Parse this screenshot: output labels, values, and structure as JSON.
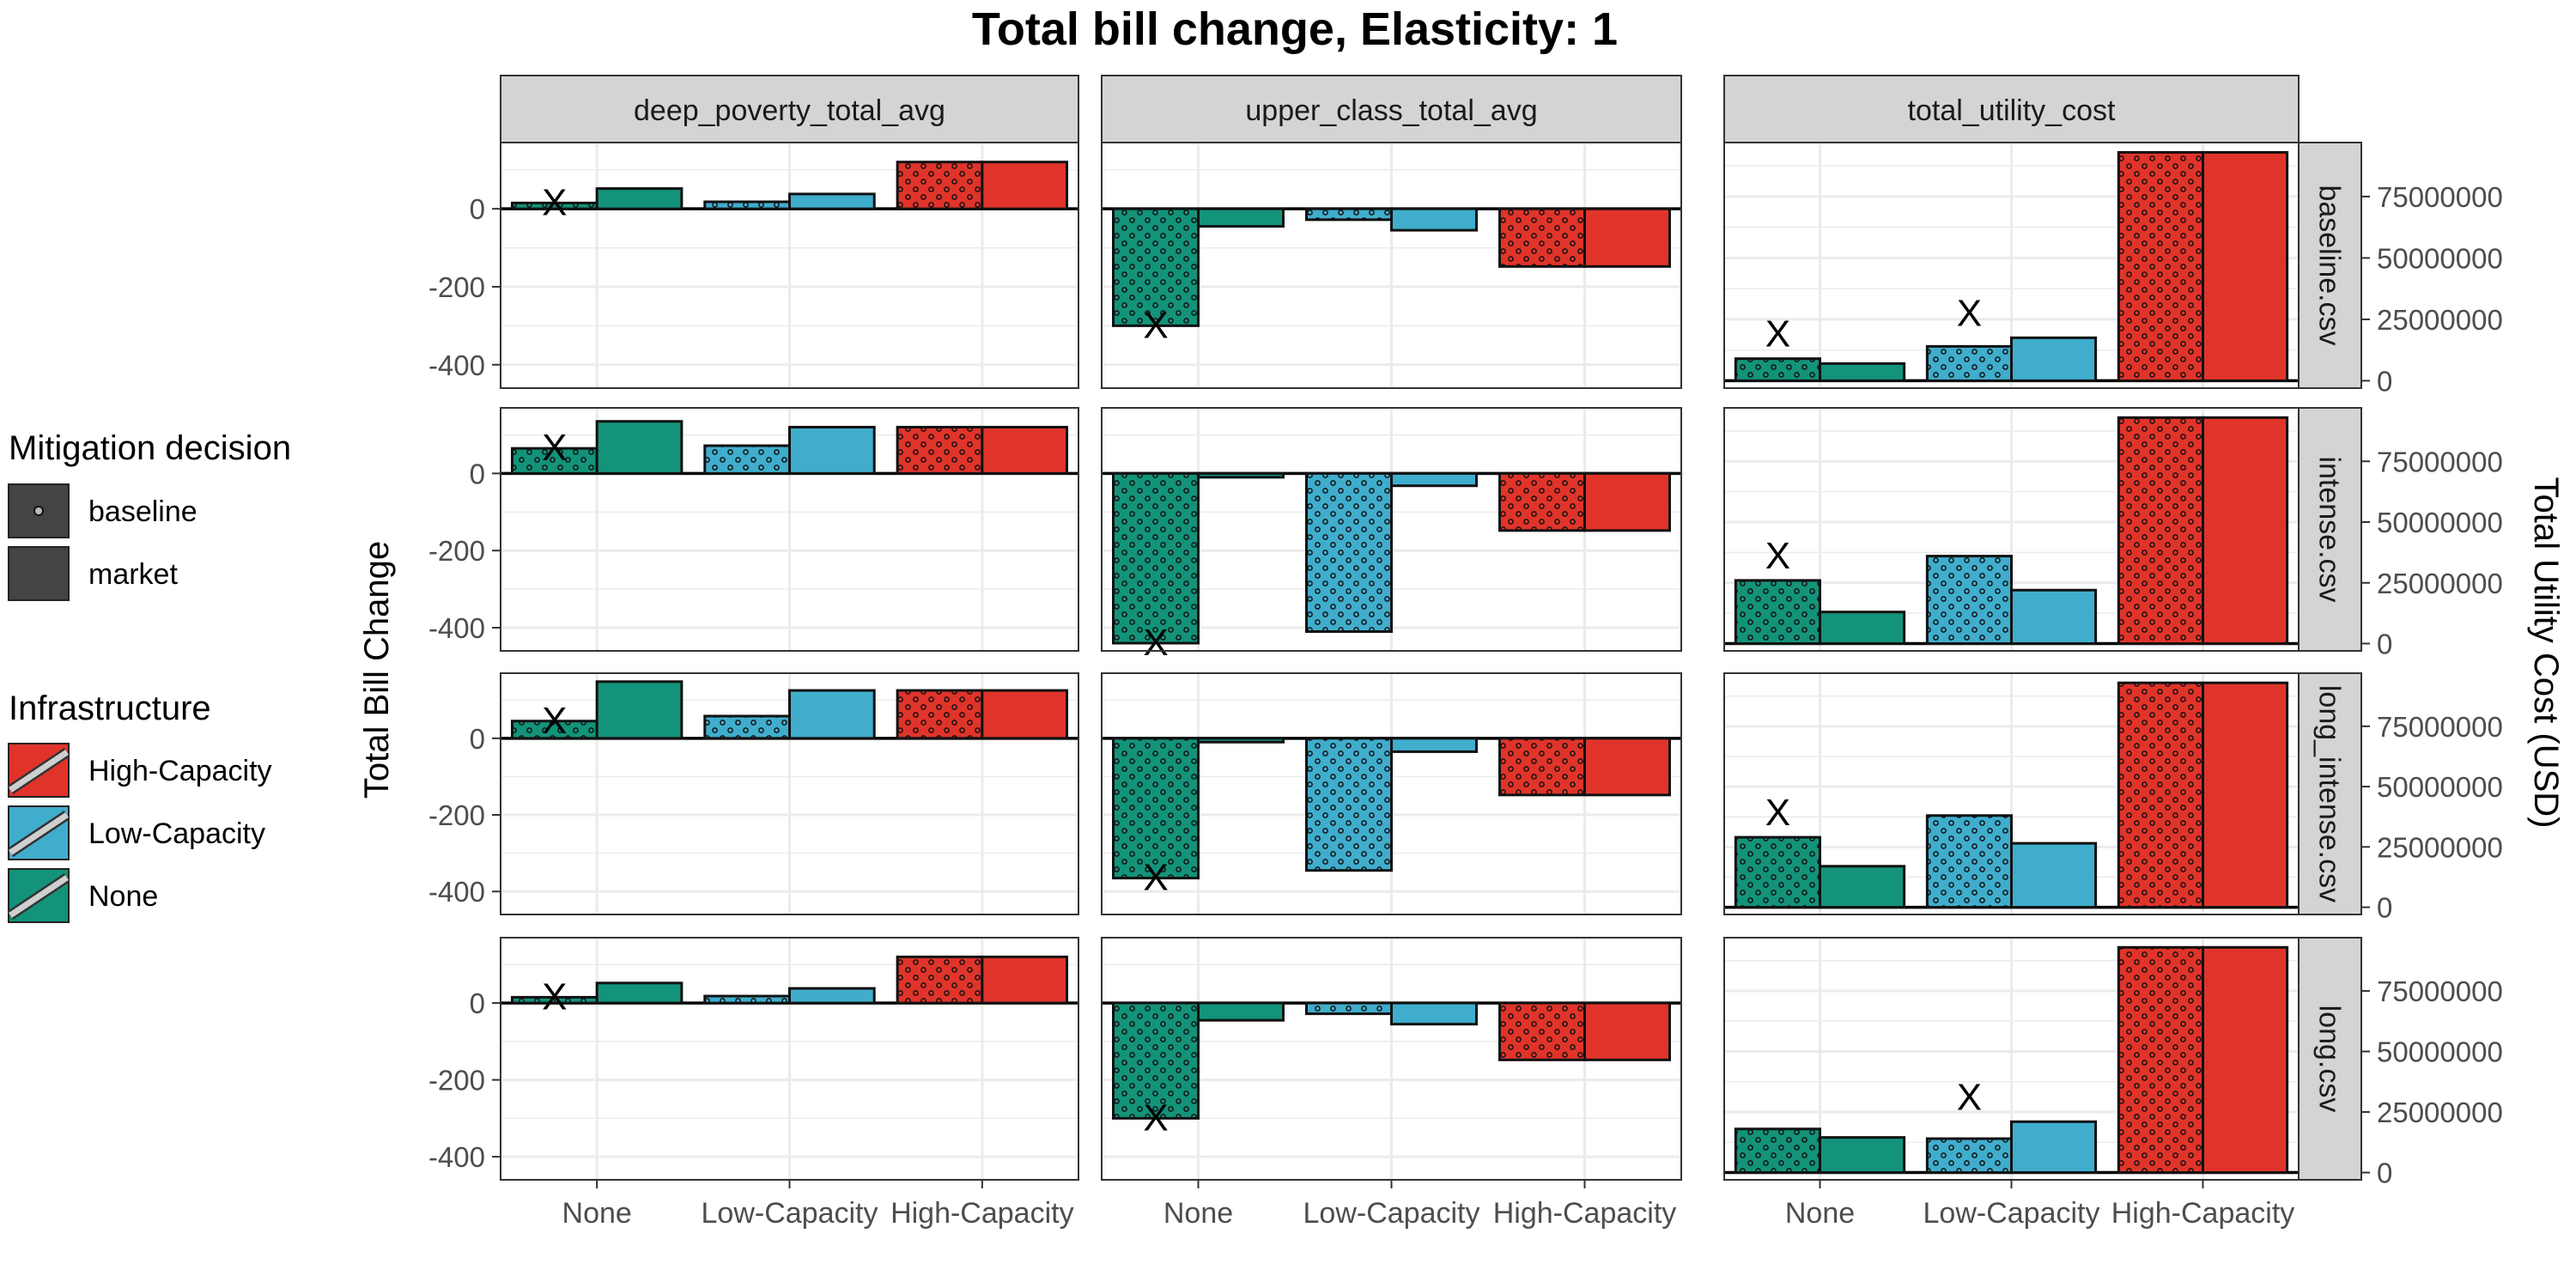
{
  "chart_data": {
    "type": "bar",
    "title": "Total bill change, Elasticity: 1",
    "ylabel_left": "Total Bill Change",
    "ylabel_right": "Total Utility Cost (USD)",
    "categories": [
      "None",
      "Low-Capacity",
      "High-Capacity"
    ],
    "column_facets": [
      "deep_poverty_total_avg",
      "upper_class_total_avg",
      "total_utility_cost"
    ],
    "row_facets": [
      "baseline.csv",
      "intense.csv",
      "long_intense.csv",
      "long.csv"
    ],
    "bill_axis": {
      "ylim": [
        -460,
        170
      ],
      "ticks": [
        0,
        -200,
        -400
      ]
    },
    "cost_axis": {
      "ylim": [
        -3000000,
        97000000
      ],
      "ticks": [
        0,
        25000000,
        50000000,
        75000000
      ]
    },
    "legend_mitigation": {
      "title": "Mitigation decision",
      "entries": [
        "baseline",
        "market"
      ]
    },
    "legend_infrastructure": {
      "title": "Infrastructure",
      "entries": [
        "High-Capacity",
        "Low-Capacity",
        "None"
      ]
    },
    "colors": {
      "None": "#13937a",
      "Low-Capacity": "#40adcc",
      "High-Capacity": "#e0342b",
      "strip": "#d4d4d4",
      "grid": "#ebebeb",
      "marker": "#000000"
    },
    "marker_label": "X",
    "panels": [
      {
        "row": "baseline.csv",
        "col": "deep_poverty_total_avg",
        "baseline": [
          15,
          18,
          120
        ],
        "market": [
          52,
          38,
          120
        ],
        "x_marker": "None"
      },
      {
        "row": "baseline.csv",
        "col": "upper_class_total_avg",
        "baseline": [
          -300,
          -28,
          -148
        ],
        "market": [
          -45,
          -55,
          -148
        ],
        "x_marker": "None"
      },
      {
        "row": "baseline.csv",
        "col": "total_utility_cost",
        "baseline": [
          9000000,
          14000000,
          93000000
        ],
        "market": [
          7000000,
          17500000,
          93000000
        ],
        "x_marker": [
          "None",
          "Low-Capacity"
        ]
      },
      {
        "row": "intense.csv",
        "col": "deep_poverty_total_avg",
        "baseline": [
          65,
          72,
          120
        ],
        "market": [
          135,
          120,
          120
        ],
        "x_marker": "None"
      },
      {
        "row": "intense.csv",
        "col": "upper_class_total_avg",
        "baseline": [
          -440,
          -410,
          -148
        ],
        "market": [
          -10,
          -32,
          -148
        ],
        "x_marker": "None"
      },
      {
        "row": "intense.csv",
        "col": "total_utility_cost",
        "baseline": [
          26000000,
          36000000,
          93000000
        ],
        "market": [
          13000000,
          22000000,
          93000000
        ],
        "x_marker": [
          "None"
        ]
      },
      {
        "row": "long_intense.csv",
        "col": "deep_poverty_total_avg",
        "baseline": [
          45,
          58,
          125
        ],
        "market": [
          148,
          125,
          125
        ],
        "x_marker": "None"
      },
      {
        "row": "long_intense.csv",
        "col": "upper_class_total_avg",
        "baseline": [
          -365,
          -345,
          -148
        ],
        "market": [
          -10,
          -35,
          -148
        ],
        "x_marker": "None"
      },
      {
        "row": "long_intense.csv",
        "col": "total_utility_cost",
        "baseline": [
          29000000,
          38000000,
          93000000
        ],
        "market": [
          17000000,
          26500000,
          93000000
        ],
        "x_marker": [
          "None"
        ]
      },
      {
        "row": "long.csv",
        "col": "deep_poverty_total_avg",
        "baseline": [
          15,
          18,
          120
        ],
        "market": [
          52,
          38,
          120
        ],
        "x_marker": "None"
      },
      {
        "row": "long.csv",
        "col": "upper_class_total_avg",
        "baseline": [
          -300,
          -28,
          -148
        ],
        "market": [
          -45,
          -55,
          -148
        ],
        "x_marker": "None"
      },
      {
        "row": "long.csv",
        "col": "total_utility_cost",
        "baseline": [
          18000000,
          14000000,
          93000000
        ],
        "market": [
          14500000,
          21000000,
          93000000
        ],
        "x_marker": [
          "Low-Capacity"
        ]
      }
    ]
  }
}
